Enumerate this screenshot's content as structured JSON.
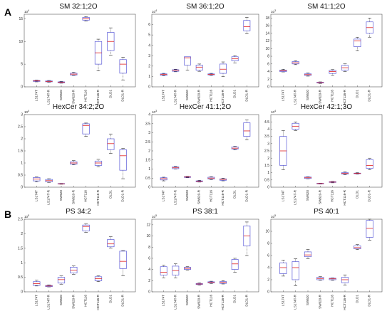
{
  "figure": {
    "panel_labels": [
      "A",
      "B"
    ],
    "colors": {
      "box": "#5b5bd8",
      "median": "#e02020",
      "axis": "#555555",
      "grid": "#e6e6e6"
    }
  },
  "chart_data": [
    {
      "type": "box",
      "title": "SM 32:1;2O",
      "exponent": "10^4",
      "categories": [
        "LS174T",
        "LS174T-R",
        "SW620",
        "SW620-R",
        "HCT116",
        "HCT116-R",
        "DLD1",
        "DLD1-R"
      ],
      "ylim": [
        0,
        16
      ],
      "yticks": [
        0,
        5,
        10,
        15
      ],
      "boxes": [
        {
          "min": 1.1,
          "q1": 1.2,
          "median": 1.3,
          "q3": 1.4,
          "max": 1.5
        },
        {
          "min": 1.0,
          "q1": 1.1,
          "median": 1.2,
          "q3": 1.3,
          "max": 1.4
        },
        {
          "min": 0.8,
          "q1": 0.9,
          "median": 1.0,
          "q3": 1.1,
          "max": 1.2
        },
        {
          "min": 2.5,
          "q1": 2.6,
          "median": 2.8,
          "q3": 3.0,
          "max": 3.2
        },
        {
          "min": 14.5,
          "q1": 14.7,
          "median": 15.0,
          "q3": 15.3,
          "max": 15.5
        },
        {
          "min": 3.5,
          "q1": 5.0,
          "median": 7.5,
          "q3": 10.0,
          "max": 10.5
        },
        {
          "min": 7.0,
          "q1": 8.0,
          "median": 10.0,
          "q3": 12.0,
          "max": 13.0
        },
        {
          "min": 1.5,
          "q1": 3.0,
          "median": 5.0,
          "q3": 6.0,
          "max": 6.5
        }
      ]
    },
    {
      "type": "box",
      "title": "SM 36:1;2O",
      "exponent": "10^4",
      "categories": [
        "LS174T",
        "LS174T-R",
        "SW620",
        "SW620-R",
        "HCT116",
        "HCT116-R",
        "DLD1",
        "DLD1-R"
      ],
      "ylim": [
        0,
        7
      ],
      "yticks": [
        0,
        1,
        2,
        3,
        4,
        5,
        6
      ],
      "boxes": [
        {
          "min": 1.05,
          "q1": 1.1,
          "median": 1.2,
          "q3": 1.25,
          "max": 1.3
        },
        {
          "min": 1.45,
          "q1": 1.5,
          "median": 1.6,
          "q3": 1.65,
          "max": 1.7
        },
        {
          "min": 1.6,
          "q1": 2.1,
          "median": 2.8,
          "q3": 2.9,
          "max": 2.9
        },
        {
          "min": 1.5,
          "q1": 1.6,
          "median": 1.9,
          "q3": 2.1,
          "max": 2.2
        },
        {
          "min": 1.1,
          "q1": 1.15,
          "median": 1.2,
          "q3": 1.25,
          "max": 1.3
        },
        {
          "min": 1.0,
          "q1": 1.3,
          "median": 1.7,
          "q3": 2.2,
          "max": 2.4
        },
        {
          "min": 2.3,
          "q1": 2.5,
          "median": 2.7,
          "q3": 2.9,
          "max": 3.0
        },
        {
          "min": 5.1,
          "q1": 5.4,
          "median": 5.8,
          "q3": 6.4,
          "max": 6.7
        }
      ]
    },
    {
      "type": "box",
      "title": "SM 41:1;2O",
      "exponent": "10^3",
      "categories": [
        "LS174T",
        "LS174T-R",
        "SW620",
        "SW620-R",
        "HCT116",
        "HCT116-R",
        "DLD1",
        "DLD1-R"
      ],
      "ylim": [
        0,
        19
      ],
      "yticks": [
        0,
        2,
        4,
        6,
        8,
        10,
        12,
        14,
        16,
        18
      ],
      "boxes": [
        {
          "min": 3.9,
          "q1": 4.0,
          "median": 4.2,
          "q3": 4.4,
          "max": 4.6
        },
        {
          "min": 5.8,
          "q1": 6.0,
          "median": 6.3,
          "q3": 6.6,
          "max": 6.8
        },
        {
          "min": 2.8,
          "q1": 3.0,
          "median": 3.2,
          "q3": 3.4,
          "max": 3.6
        },
        {
          "min": 0.9,
          "q1": 1.0,
          "median": 1.1,
          "q3": 1.2,
          "max": 1.3
        },
        {
          "min": 3.0,
          "q1": 3.5,
          "median": 4.0,
          "q3": 4.3,
          "max": 4.5
        },
        {
          "min": 4.0,
          "q1": 4.4,
          "median": 5.0,
          "q3": 5.6,
          "max": 6.0
        },
        {
          "min": 9.5,
          "q1": 10.5,
          "median": 12.0,
          "q3": 12.5,
          "max": 13.0
        },
        {
          "min": 13.0,
          "q1": 14.0,
          "median": 15.5,
          "q3": 17.0,
          "max": 18.0
        }
      ]
    },
    {
      "type": "box",
      "title": "HexCer 34:2;2O",
      "exponent": "10^4",
      "categories": [
        "LS174T",
        "LS174T-R",
        "SW620",
        "SW620-R",
        "HCT116",
        "HCT116-R",
        "DLD1",
        "DLD1-R"
      ],
      "ylim": [
        0,
        3
      ],
      "yticks": [
        0,
        0.5,
        1,
        1.5,
        2,
        2.5,
        3
      ],
      "boxes": [
        {
          "min": 0.22,
          "q1": 0.26,
          "median": 0.34,
          "q3": 0.4,
          "max": 0.42
        },
        {
          "min": 0.2,
          "q1": 0.22,
          "median": 0.27,
          "q3": 0.32,
          "max": 0.35
        },
        {
          "min": 0.12,
          "q1": 0.13,
          "median": 0.14,
          "q3": 0.15,
          "max": 0.16
        },
        {
          "min": 0.92,
          "q1": 0.95,
          "median": 1.0,
          "q3": 1.05,
          "max": 1.1
        },
        {
          "min": 2.1,
          "q1": 2.2,
          "median": 2.55,
          "q3": 2.62,
          "max": 2.65
        },
        {
          "min": 0.85,
          "q1": 0.9,
          "median": 1.0,
          "q3": 1.08,
          "max": 1.15
        },
        {
          "min": 1.4,
          "q1": 1.55,
          "median": 1.8,
          "q3": 2.0,
          "max": 2.2
        },
        {
          "min": 0.35,
          "q1": 0.7,
          "median": 1.3,
          "q3": 1.55,
          "max": 1.6
        }
      ]
    },
    {
      "type": "box",
      "title": "HexCer 41:1;2O",
      "exponent": "10^3",
      "categories": [
        "LS174T",
        "LS174T-R",
        "SW620",
        "SW620-R",
        "HCT116",
        "HCT116-R",
        "DLD1",
        "DLD1-R"
      ],
      "ylim": [
        0,
        4
      ],
      "yticks": [
        0,
        0.5,
        1,
        1.5,
        2,
        2.5,
        3,
        3.5,
        4
      ],
      "boxes": [
        {
          "min": 0.35,
          "q1": 0.4,
          "median": 0.47,
          "q3": 0.52,
          "max": 0.55
        },
        {
          "min": 1.0,
          "q1": 1.02,
          "median": 1.07,
          "q3": 1.12,
          "max": 1.15
        },
        {
          "min": 0.52,
          "q1": 0.54,
          "median": 0.56,
          "q3": 0.58,
          "max": 0.6
        },
        {
          "min": 0.28,
          "q1": 0.3,
          "median": 0.32,
          "q3": 0.35,
          "max": 0.38
        },
        {
          "min": 0.42,
          "q1": 0.45,
          "median": 0.5,
          "q3": 0.55,
          "max": 0.58
        },
        {
          "min": 0.35,
          "q1": 0.38,
          "median": 0.43,
          "q3": 0.46,
          "max": 0.5
        },
        {
          "min": 2.05,
          "q1": 2.1,
          "median": 2.15,
          "q3": 2.22,
          "max": 2.25
        },
        {
          "min": 2.6,
          "q1": 2.8,
          "median": 3.1,
          "q3": 3.55,
          "max": 3.7
        }
      ]
    },
    {
      "type": "box",
      "title": "HexCer 42:1;3O",
      "exponent": "10^4",
      "categories": [
        "LS174T",
        "LS174T-R",
        "SW620",
        "SW620-R",
        "HCT116",
        "HCT116-R",
        "DLD1",
        "DLD1-R"
      ],
      "ylim": [
        0,
        5
      ],
      "yticks": [
        0,
        0.5,
        1,
        1.5,
        2,
        2.5,
        3,
        3.5,
        4,
        4.5
      ],
      "boxes": [
        {
          "min": 1.2,
          "q1": 1.5,
          "median": 2.5,
          "q3": 3.5,
          "max": 3.9
        },
        {
          "min": 3.9,
          "q1": 4.0,
          "median": 4.2,
          "q3": 4.4,
          "max": 4.5
        },
        {
          "min": 0.58,
          "q1": 0.6,
          "median": 0.65,
          "q3": 0.7,
          "max": 0.72
        },
        {
          "min": 0.22,
          "q1": 0.23,
          "median": 0.25,
          "q3": 0.27,
          "max": 0.28
        },
        {
          "min": 0.3,
          "q1": 0.33,
          "median": 0.35,
          "q3": 0.38,
          "max": 0.4
        },
        {
          "min": 0.85,
          "q1": 0.9,
          "median": 0.95,
          "q3": 1.0,
          "max": 1.05
        },
        {
          "min": 0.9,
          "q1": 0.93,
          "median": 0.95,
          "q3": 0.97,
          "max": 1.0
        },
        {
          "min": 1.2,
          "q1": 1.3,
          "median": 1.5,
          "q3": 1.9,
          "max": 2.0
        }
      ]
    },
    {
      "type": "box",
      "title": "PS 34:2",
      "exponent": "10^5",
      "categories": [
        "LS174T",
        "LS174T-R",
        "SW620",
        "SW620-R",
        "HCT116",
        "HCT116-R",
        "DLD1",
        "DLD1-R"
      ],
      "ylim": [
        0,
        2.5
      ],
      "yticks": [
        0,
        0.5,
        1,
        1.5,
        2,
        2.5
      ],
      "boxes": [
        {
          "min": 0.2,
          "q1": 0.22,
          "median": 0.28,
          "q3": 0.35,
          "max": 0.4
        },
        {
          "min": 0.17,
          "q1": 0.18,
          "median": 0.2,
          "q3": 0.22,
          "max": 0.24
        },
        {
          "min": 0.25,
          "q1": 0.3,
          "median": 0.42,
          "q3": 0.5,
          "max": 0.55
        },
        {
          "min": 0.6,
          "q1": 0.65,
          "median": 0.75,
          "q3": 0.85,
          "max": 0.9
        },
        {
          "min": 2.05,
          "q1": 2.1,
          "median": 2.25,
          "q3": 2.3,
          "max": 2.35
        },
        {
          "min": 0.35,
          "q1": 0.38,
          "median": 0.45,
          "q3": 0.52,
          "max": 0.55
        },
        {
          "min": 1.5,
          "q1": 1.55,
          "median": 1.65,
          "q3": 1.8,
          "max": 1.9
        },
        {
          "min": 0.55,
          "q1": 0.8,
          "median": 1.05,
          "q3": 1.4,
          "max": 1.42
        }
      ]
    },
    {
      "type": "box",
      "title": "PS 38:1",
      "exponent": "10^5",
      "categories": [
        "LS174T",
        "LS174T-R",
        "SW620",
        "SW620-R",
        "HCT116",
        "HCT116-R",
        "DLD1",
        "DLD1-R"
      ],
      "ylim": [
        0,
        13
      ],
      "yticks": [
        0,
        2,
        4,
        6,
        8,
        10,
        12
      ],
      "boxes": [
        {
          "min": 2.5,
          "q1": 3.0,
          "median": 3.5,
          "q3": 4.5,
          "max": 4.8
        },
        {
          "min": 2.5,
          "q1": 3.0,
          "median": 3.8,
          "q3": 4.6,
          "max": 5.0
        },
        {
          "min": 3.9,
          "q1": 4.0,
          "median": 4.2,
          "q3": 4.4,
          "max": 4.5
        },
        {
          "min": 1.2,
          "q1": 1.3,
          "median": 1.4,
          "q3": 1.5,
          "max": 1.6
        },
        {
          "min": 1.5,
          "q1": 1.6,
          "median": 1.7,
          "q3": 1.8,
          "max": 1.9
        },
        {
          "min": 1.4,
          "q1": 1.5,
          "median": 1.7,
          "q3": 1.85,
          "max": 2.0
        },
        {
          "min": 3.5,
          "q1": 4.0,
          "median": 5.0,
          "q3": 5.8,
          "max": 6.0
        },
        {
          "min": 6.5,
          "q1": 8.2,
          "median": 10.0,
          "q3": 11.8,
          "max": 12.5
        }
      ]
    },
    {
      "type": "box",
      "title": "PS 40:1",
      "exponent": "10^5",
      "categories": [
        "LS174T",
        "LS174T-R",
        "SW620",
        "SW620-R",
        "HCT116",
        "HCT116-R",
        "DLD1",
        "DLD1-R"
      ],
      "ylim": [
        0,
        12
      ],
      "yticks": [
        0,
        2,
        4,
        6,
        8,
        10
      ],
      "boxes": [
        {
          "min": 2.6,
          "q1": 3.0,
          "median": 4.0,
          "q3": 4.8,
          "max": 5.2
        },
        {
          "min": 1.0,
          "q1": 2.0,
          "median": 4.0,
          "q3": 5.0,
          "max": 5.5
        },
        {
          "min": 5.5,
          "q1": 5.8,
          "median": 6.1,
          "q3": 6.6,
          "max": 7.0
        },
        {
          "min": 1.9,
          "q1": 2.0,
          "median": 2.2,
          "q3": 2.4,
          "max": 2.5
        },
        {
          "min": 1.9,
          "q1": 2.0,
          "median": 2.15,
          "q3": 2.25,
          "max": 2.3
        },
        {
          "min": 1.1,
          "q1": 1.5,
          "median": 2.0,
          "q3": 2.4,
          "max": 2.8
        },
        {
          "min": 7.0,
          "q1": 7.1,
          "median": 7.3,
          "q3": 7.6,
          "max": 7.8
        },
        {
          "min": 8.5,
          "q1": 9.0,
          "median": 10.5,
          "q3": 11.8,
          "max": 12.0
        }
      ]
    }
  ]
}
